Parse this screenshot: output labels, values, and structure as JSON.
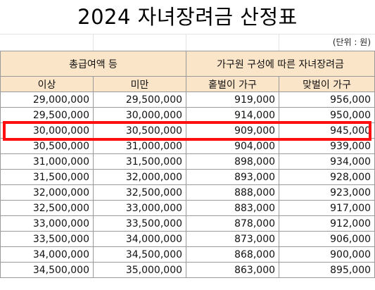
{
  "title": "2024 자녀장려금 산정표",
  "unit_note": "(단위 : 원)",
  "headers": {
    "income_group": "총급여액 등",
    "family_group": "가구원 구성에 따른 자녀장려금",
    "min": "이상",
    "max": "미만",
    "single_earner": "홑벌이 가구",
    "dual_earner": "맞벌이 가구"
  },
  "rows": [
    [
      "29,000,000",
      "29,500,000",
      "919,000",
      "956,000"
    ],
    [
      "29,500,000",
      "30,000,000",
      "914,000",
      "950,000"
    ],
    [
      "30,000,000",
      "30,500,000",
      "909,000",
      "945,000"
    ],
    [
      "30,500,000",
      "31,000,000",
      "904,000",
      "939,000"
    ],
    [
      "31,000,000",
      "31,500,000",
      "898,000",
      "934,000"
    ],
    [
      "31,500,000",
      "32,000,000",
      "893,000",
      "928,000"
    ],
    [
      "32,000,000",
      "32,500,000",
      "888,000",
      "923,000"
    ],
    [
      "32,500,000",
      "33,000,000",
      "883,000",
      "917,000"
    ],
    [
      "33,000,000",
      "33,500,000",
      "878,000",
      "912,000"
    ],
    [
      "33,500,000",
      "34,000,000",
      "873,000",
      "906,000"
    ],
    [
      "34,000,000",
      "34,500,000",
      "868,000",
      "900,000"
    ],
    [
      "34,500,000",
      "35,000,000",
      "863,000",
      "895,000"
    ]
  ],
  "highlight": {
    "row_index": 2,
    "color": "#ff1010"
  },
  "colors": {
    "header_bg": "#fbe5c8",
    "border": "#9a9a9a"
  }
}
